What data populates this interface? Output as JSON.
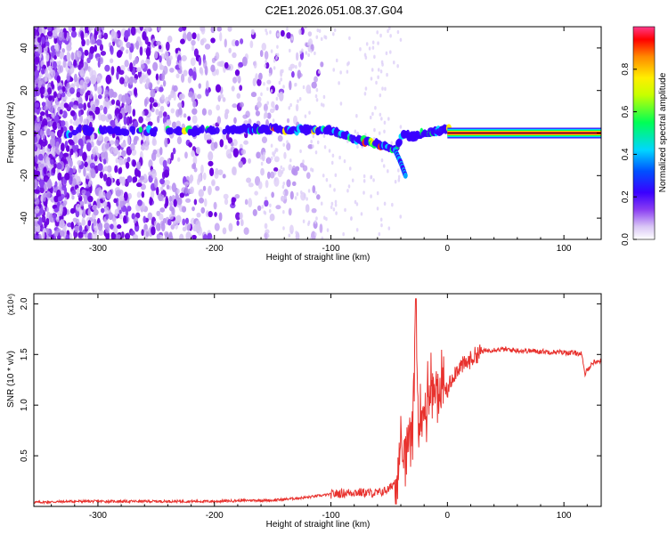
{
  "title": "C2E1.2026.051.08.37.G04",
  "colors": {
    "snr_line": "#e8322e",
    "axes": "#000000",
    "background": "#ffffff",
    "colormap": [
      "#ffffff",
      "#d9c6f5",
      "#8a3ef2",
      "#6a00e0",
      "#0000ff",
      "#00d6ff",
      "#00ff55",
      "#ffff00",
      "#ff8800",
      "#ff0000",
      "#ff3a8a"
    ]
  },
  "chart_data": [
    {
      "type": "heatmap",
      "title": "C2E1.2026.051.08.37.G04",
      "xlabel": "Height of straight line (km)",
      "ylabel": "Frequency (Hz)",
      "xlim": [
        -355,
        132
      ],
      "ylim": [
        -50,
        50
      ],
      "xticks": [
        -300,
        -200,
        -100,
        0,
        100
      ],
      "yticks": [
        -40,
        -20,
        0,
        20,
        40
      ],
      "colorbar": {
        "label": "Normalized spectral amplitude",
        "range": [
          0,
          1
        ],
        "ticks": [
          "0.0",
          "0.2",
          "0.4",
          "0.6",
          "0.8"
        ]
      },
      "ridge": {
        "description_points": [
          [
            -320,
            1.5
          ],
          [
            -270,
            1
          ],
          [
            -220,
            1
          ],
          [
            -180,
            1.5
          ],
          [
            -150,
            2
          ],
          [
            -120,
            1.5
          ],
          [
            -100,
            1
          ],
          [
            -85,
            -2
          ],
          [
            -70,
            -4
          ],
          [
            -55,
            -6
          ],
          [
            -45,
            -8
          ],
          [
            -38,
            0
          ],
          [
            -30,
            -2
          ],
          [
            -20,
            0
          ],
          [
            -10,
            1
          ],
          [
            0,
            2
          ],
          [
            50,
            0
          ],
          [
            132,
            0
          ]
        ],
        "branch": [
          [
            -45,
            -8
          ],
          [
            -40,
            -14
          ],
          [
            -36,
            -20
          ]
        ]
      },
      "grid": false
    },
    {
      "type": "line",
      "xlabel": "Height of straight line (km)",
      "ylabel": "SNR (10 * v/v)",
      "y_multiplier": "(x10⁴)",
      "xlim": [
        -355,
        132
      ],
      "ylim": [
        0,
        2.1
      ],
      "xticks": [
        -300,
        -200,
        -100,
        0,
        100
      ],
      "yticks": [
        "0.5",
        "1.0",
        "1.5",
        "2.0"
      ],
      "ytick_values": [
        0.5,
        1.0,
        1.5,
        2.0
      ],
      "series": [
        {
          "color": "#e8322e",
          "x": [
            -355,
            -320,
            -300,
            -250,
            -200,
            -170,
            -150,
            -120,
            -100,
            -80,
            -60,
            -50,
            -45,
            -40,
            -35,
            -30,
            -27,
            -25,
            -22,
            -20,
            -15,
            -10,
            -5,
            0,
            5,
            10,
            15,
            20,
            25,
            30,
            40,
            50,
            60,
            80,
            100,
            115,
            118,
            120,
            125,
            132
          ],
          "y": [
            0.04,
            0.05,
            0.05,
            0.05,
            0.05,
            0.06,
            0.06,
            0.09,
            0.12,
            0.14,
            0.13,
            0.17,
            0.25,
            0.45,
            0.6,
            0.85,
            2.05,
            0.75,
            0.8,
            0.95,
            1.1,
            1.2,
            1.1,
            1.15,
            1.3,
            1.38,
            1.4,
            1.45,
            1.5,
            1.53,
            1.55,
            1.55,
            1.54,
            1.53,
            1.52,
            1.51,
            1.3,
            1.35,
            1.42,
            1.44
          ]
        }
      ],
      "grid": false
    }
  ]
}
